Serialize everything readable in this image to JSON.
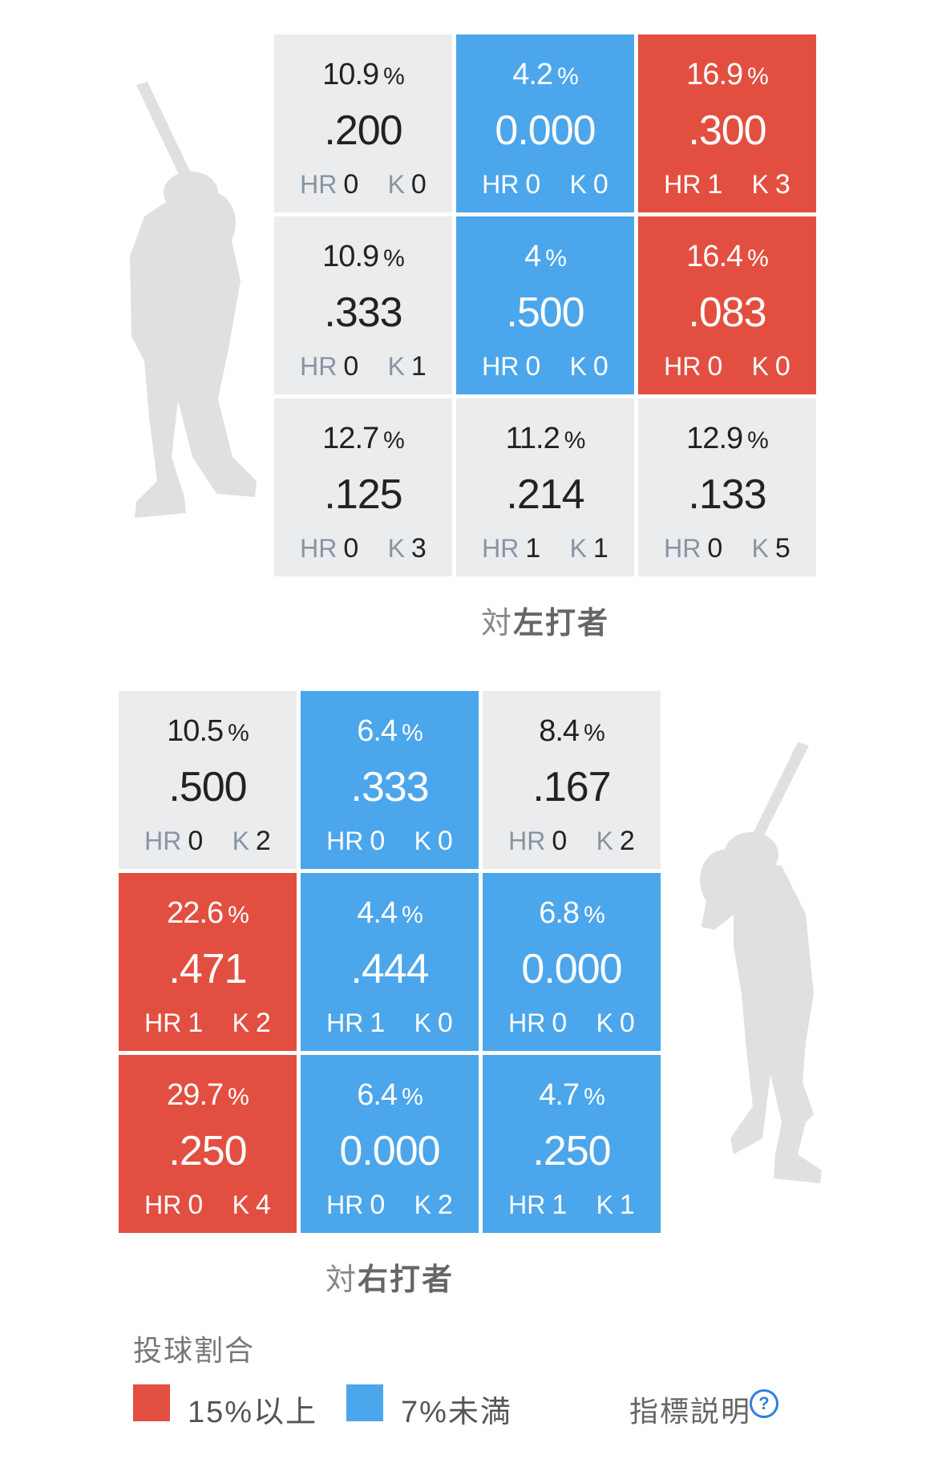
{
  "colors": {
    "high": "#e24f40",
    "low": "#4ba6eb",
    "neutral": "#ebecee"
  },
  "pct_unit": "%",
  "hr_label": "HR",
  "k_label": "K",
  "left_batter": {
    "caption_prefix": "対",
    "caption_main": "左打者",
    "cells": [
      {
        "pct": "10.9",
        "avg": ".200",
        "hr": "0",
        "k": "0",
        "level": "neutral"
      },
      {
        "pct": "4.2",
        "avg": "0.000",
        "hr": "0",
        "k": "0",
        "level": "blue"
      },
      {
        "pct": "16.9",
        "avg": ".300",
        "hr": "1",
        "k": "3",
        "level": "red"
      },
      {
        "pct": "10.9",
        "avg": ".333",
        "hr": "0",
        "k": "1",
        "level": "neutral"
      },
      {
        "pct": "4",
        "avg": ".500",
        "hr": "0",
        "k": "0",
        "level": "blue"
      },
      {
        "pct": "16.4",
        "avg": ".083",
        "hr": "0",
        "k": "0",
        "level": "red"
      },
      {
        "pct": "12.7",
        "avg": ".125",
        "hr": "0",
        "k": "3",
        "level": "neutral"
      },
      {
        "pct": "11.2",
        "avg": ".214",
        "hr": "1",
        "k": "1",
        "level": "neutral"
      },
      {
        "pct": "12.9",
        "avg": ".133",
        "hr": "0",
        "k": "5",
        "level": "neutral"
      }
    ]
  },
  "right_batter": {
    "caption_prefix": "対",
    "caption_main": "右打者",
    "cells": [
      {
        "pct": "10.5",
        "avg": ".500",
        "hr": "0",
        "k": "2",
        "level": "neutral"
      },
      {
        "pct": "6.4",
        "avg": ".333",
        "hr": "0",
        "k": "0",
        "level": "blue"
      },
      {
        "pct": "8.4",
        "avg": ".167",
        "hr": "0",
        "k": "2",
        "level": "neutral"
      },
      {
        "pct": "22.6",
        "avg": ".471",
        "hr": "1",
        "k": "2",
        "level": "red"
      },
      {
        "pct": "4.4",
        "avg": ".444",
        "hr": "1",
        "k": "0",
        "level": "blue"
      },
      {
        "pct": "6.8",
        "avg": "0.000",
        "hr": "0",
        "k": "0",
        "level": "blue"
      },
      {
        "pct": "29.7",
        "avg": ".250",
        "hr": "0",
        "k": "4",
        "level": "red"
      },
      {
        "pct": "6.4",
        "avg": "0.000",
        "hr": "0",
        "k": "2",
        "level": "blue"
      },
      {
        "pct": "4.7",
        "avg": ".250",
        "hr": "1",
        "k": "1",
        "level": "blue"
      }
    ]
  },
  "legend": {
    "title": "投球割合",
    "high_label": "15%以上",
    "low_label": "7%未満",
    "help_label": "指標説明",
    "help_icon": "?"
  },
  "icons": {
    "batter": "batter-silhouette-icon",
    "help": "question-circle-icon"
  }
}
